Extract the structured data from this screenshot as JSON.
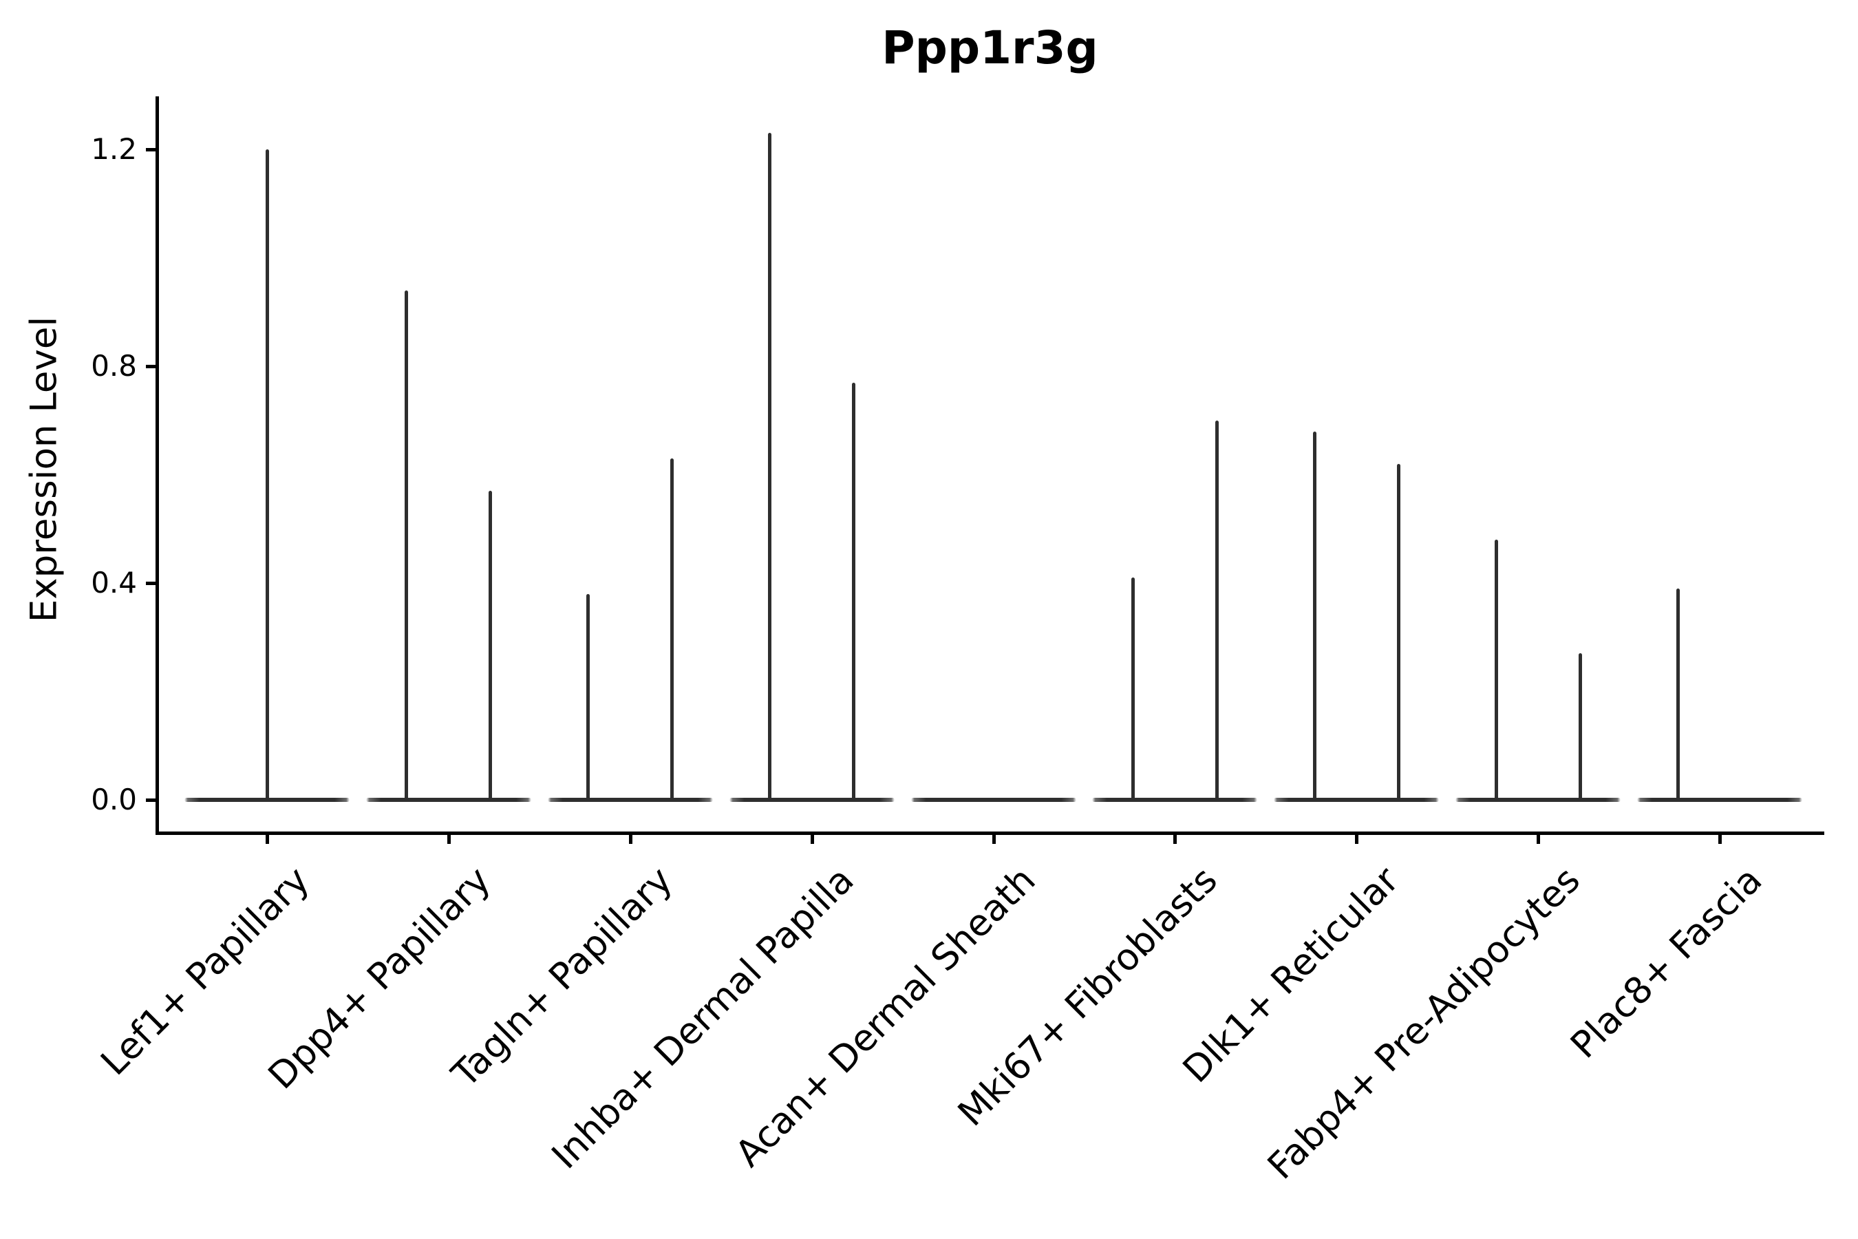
{
  "figure": {
    "title": "Ppp1r3g",
    "background_color": "#ffffff",
    "axis_color": "#000000",
    "violin_color": "#2e2e2e"
  },
  "chart_data": {
    "type": "violin",
    "title": "Ppp1r3g",
    "xlabel": "",
    "ylabel": "Expression Level",
    "yticks": [
      0.0,
      0.4,
      0.8,
      1.2
    ],
    "ylim": [
      -0.06,
      1.3
    ],
    "grid": false,
    "legend": "none",
    "categories": [
      "Lef1+ Papillary",
      "Dpp4+ Papillary",
      "Tagln+ Papillary",
      "Inhba+ Dermal Papilla",
      "Acan+ Dermal Sheath",
      "Mki67+ Fibroblasts",
      "Dlk1+ Reticular",
      "Fabp4+ Pre-Adipocytes",
      "Plac8+ Fascia"
    ],
    "baseline_expression": 0.0,
    "violins": [
      {
        "category": "Lef1+ Papillary",
        "position": "center",
        "max_expression": 1.2
      },
      {
        "category": "Dpp4+ Papillary",
        "position": "left",
        "max_expression": 0.94
      },
      {
        "category": "Dpp4+ Papillary",
        "position": "right",
        "max_expression": 0.57
      },
      {
        "category": "Tagln+ Papillary",
        "position": "left",
        "max_expression": 0.38
      },
      {
        "category": "Tagln+ Papillary",
        "position": "right",
        "max_expression": 0.63
      },
      {
        "category": "Inhba+ Dermal Papilla",
        "position": "left",
        "max_expression": 1.23
      },
      {
        "category": "Inhba+ Dermal Papilla",
        "position": "right",
        "max_expression": 0.77
      },
      {
        "category": "Mki67+ Fibroblasts",
        "position": "left",
        "max_expression": 0.41
      },
      {
        "category": "Mki67+ Fibroblasts",
        "position": "right",
        "max_expression": 0.7
      },
      {
        "category": "Dlk1+ Reticular",
        "position": "left",
        "max_expression": 0.68
      },
      {
        "category": "Dlk1+ Reticular",
        "position": "right",
        "max_expression": 0.62
      },
      {
        "category": "Fabp4+ Pre-Adipocytes",
        "position": "left",
        "max_expression": 0.48
      },
      {
        "category": "Fabp4+ Pre-Adipocytes",
        "position": "right",
        "max_expression": 0.27
      },
      {
        "category": "Plac8+ Fascia",
        "position": "left",
        "max_expression": 0.39
      }
    ]
  }
}
